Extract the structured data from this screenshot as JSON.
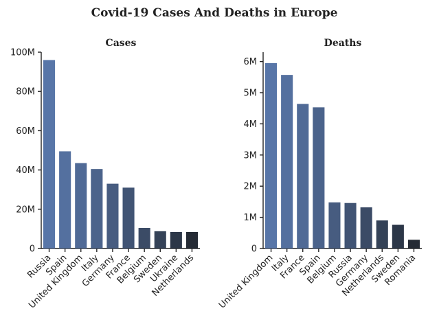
{
  "figure": {
    "title": "Covid-19 Cases And Deaths in Europe"
  },
  "chart_data": [
    {
      "type": "bar",
      "title": "Cases",
      "xlabel": "",
      "ylabel": "",
      "ylim": [
        0,
        100000000
      ],
      "yticks": [
        0,
        20000000,
        40000000,
        60000000,
        80000000,
        100000000
      ],
      "ytick_labels": [
        "0",
        "20M",
        "40M",
        "60M",
        "80M",
        "100M"
      ],
      "categories": [
        "Russia",
        "Spain",
        "United Kingdom",
        "Italy",
        "Germany",
        "France",
        "Belgium",
        "Sweden",
        "Ukraine",
        "Netherlands"
      ],
      "values": [
        96000000,
        49500000,
        43500000,
        40500000,
        33000000,
        31000000,
        10500000,
        8800000,
        8400000,
        8400000
      ],
      "colors": [
        "#5876a8",
        "#54709f",
        "#506a96",
        "#4b638b",
        "#475c80",
        "#415474",
        "#3b4b66",
        "#344257",
        "#2c3748",
        "#252b35"
      ],
      "grid": false
    },
    {
      "type": "bar",
      "title": "Deaths",
      "xlabel": "",
      "ylabel": "",
      "ylim": [
        0,
        6300000
      ],
      "yticks": [
        0,
        1000000,
        2000000,
        3000000,
        4000000,
        5000000,
        6000000
      ],
      "ytick_labels": [
        "0",
        "1M",
        "2M",
        "3M",
        "4M",
        "5M",
        "6M"
      ],
      "categories": [
        "United Kingdom",
        "Italy",
        "France",
        "Spain",
        "Belgium",
        "Russia",
        "Germany",
        "Netherlands",
        "Sweden",
        "Romania"
      ],
      "values": [
        5950000,
        5570000,
        4640000,
        4530000,
        1480000,
        1460000,
        1320000,
        900000,
        760000,
        280000
      ],
      "colors": [
        "#5876a8",
        "#54709f",
        "#506a96",
        "#4b638b",
        "#475c80",
        "#415474",
        "#3b4b66",
        "#344257",
        "#2c3748",
        "#252b35"
      ],
      "grid": false
    }
  ]
}
